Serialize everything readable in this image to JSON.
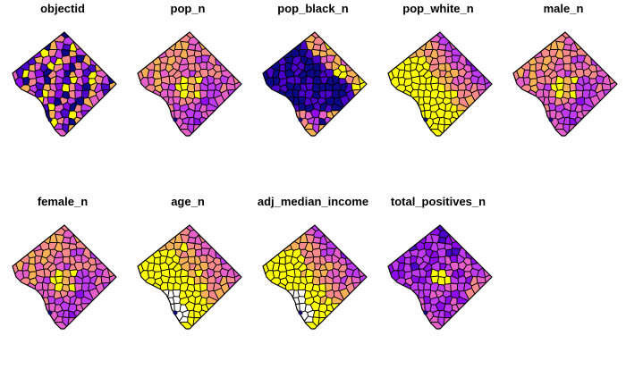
{
  "figure": {
    "panels": [
      {
        "title": "objectid",
        "pattern": "random"
      },
      {
        "title": "pop_n",
        "pattern": "pop"
      },
      {
        "title": "pop_black_n",
        "pattern": "black"
      },
      {
        "title": "pop_white_n",
        "pattern": "white"
      },
      {
        "title": "male_n",
        "pattern": "pop"
      },
      {
        "title": "female_n",
        "pattern": "pop"
      },
      {
        "title": "age_n",
        "pattern": "age",
        "has_missing": true
      },
      {
        "title": "adj_median_income",
        "pattern": "income",
        "has_missing": true
      },
      {
        "title": "total_positives_n",
        "pattern": "cases"
      }
    ],
    "palette": [
      "#0D0887",
      "#4B03C9",
      "#8E09EC",
      "#C03AF2",
      "#E75FC8",
      "#FB8A8C",
      "#F8B156",
      "#FFFF00"
    ],
    "missing_color": "#FFFFFF"
  }
}
